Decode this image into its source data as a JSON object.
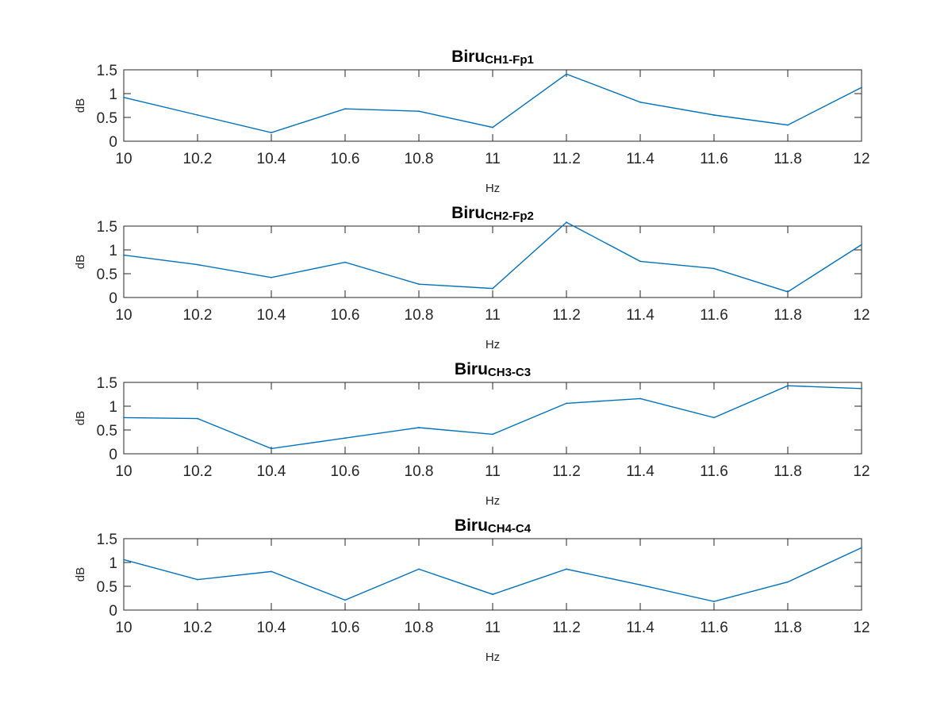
{
  "figure": {
    "background": "#ffffff",
    "line_color": "#0072BD",
    "axis_color": "#262626"
  },
  "chart_data": [
    {
      "type": "line",
      "title": "Biru",
      "title_subscript": "CH1-Fp1",
      "xlabel": "Hz",
      "ylabel": "dB",
      "xlim": [
        10,
        12
      ],
      "ylim": [
        0,
        1.5
      ],
      "xticks": [
        "10",
        "10.2",
        "10.4",
        "10.6",
        "10.8",
        "11",
        "11.2",
        "11.4",
        "11.6",
        "11.8",
        "12"
      ],
      "yticks": [
        "0",
        "0.5",
        "1",
        "1.5"
      ],
      "grid": false,
      "x": [
        10,
        10.2,
        10.4,
        10.6,
        10.8,
        11,
        11.2,
        11.4,
        11.6,
        11.8,
        12
      ],
      "y": [
        0.92,
        0.55,
        0.18,
        0.68,
        0.63,
        0.29,
        1.41,
        0.82,
        0.55,
        0.34,
        1.13
      ]
    },
    {
      "type": "line",
      "title": "Biru",
      "title_subscript": "CH2-Fp2",
      "xlabel": "Hz",
      "ylabel": "dB",
      "xlim": [
        10,
        12
      ],
      "ylim": [
        0,
        1.5
      ],
      "xticks": [
        "10",
        "10.2",
        "10.4",
        "10.6",
        "10.8",
        "11",
        "11.2",
        "11.4",
        "11.6",
        "11.8",
        "12"
      ],
      "yticks": [
        "0",
        "0.5",
        "1",
        "1.5"
      ],
      "grid": false,
      "x": [
        10,
        10.2,
        10.4,
        10.6,
        10.8,
        11,
        11.2,
        11.4,
        11.6,
        11.8,
        12
      ],
      "y": [
        0.89,
        0.69,
        0.42,
        0.74,
        0.28,
        0.19,
        1.58,
        0.76,
        0.61,
        0.12,
        1.11
      ]
    },
    {
      "type": "line",
      "title": "Biru",
      "title_subscript": "CH3-C3",
      "xlabel": "Hz",
      "ylabel": "dB",
      "xlim": [
        10,
        12
      ],
      "ylim": [
        0,
        1.5
      ],
      "xticks": [
        "10",
        "10.2",
        "10.4",
        "10.6",
        "10.8",
        "11",
        "11.2",
        "11.4",
        "11.6",
        "11.8",
        "12"
      ],
      "yticks": [
        "0",
        "0.5",
        "1",
        "1.5"
      ],
      "grid": false,
      "x": [
        10,
        10.2,
        10.4,
        10.6,
        10.8,
        11,
        11.2,
        11.4,
        11.6,
        11.8,
        12
      ],
      "y": [
        0.76,
        0.74,
        0.11,
        0.33,
        0.55,
        0.41,
        1.06,
        1.16,
        0.76,
        1.43,
        1.37
      ]
    },
    {
      "type": "line",
      "title": "Biru",
      "title_subscript": "CH4-C4",
      "xlabel": "Hz",
      "ylabel": "dB",
      "xlim": [
        10,
        12
      ],
      "ylim": [
        0,
        1.5
      ],
      "xticks": [
        "10",
        "10.2",
        "10.4",
        "10.6",
        "10.8",
        "11",
        "11.2",
        "11.4",
        "11.6",
        "11.8",
        "12"
      ],
      "yticks": [
        "0",
        "0.5",
        "1",
        "1.5"
      ],
      "grid": false,
      "x": [
        10,
        10.2,
        10.4,
        10.6,
        10.8,
        11,
        11.2,
        11.4,
        11.6,
        11.8,
        12
      ],
      "y": [
        1.06,
        0.64,
        0.81,
        0.21,
        0.86,
        0.33,
        0.86,
        0.53,
        0.18,
        0.59,
        1.31
      ]
    }
  ]
}
